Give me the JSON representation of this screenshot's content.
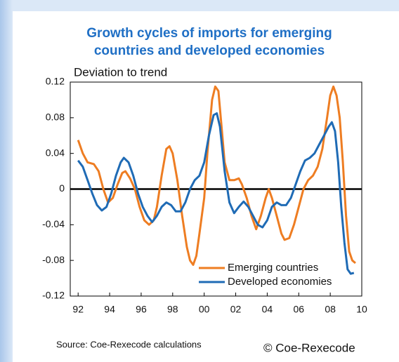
{
  "chart_data": {
    "type": "line",
    "title": "Growth cycles of imports for emerging countries and developed economies",
    "title_lines": [
      "Growth cycles of imports for emerging",
      "countries and developed economies"
    ],
    "y_label": "Deviation to trend",
    "source": "Source: Coe-Rexecode calculations",
    "credit": "© Coe-Rexecode",
    "xlim": [
      1991.5,
      2010
    ],
    "xticks": [
      {
        "value": 1992,
        "label": "92"
      },
      {
        "value": 1994,
        "label": "94"
      },
      {
        "value": 1996,
        "label": "96"
      },
      {
        "value": 1998,
        "label": "98"
      },
      {
        "value": 2000,
        "label": "00"
      },
      {
        "value": 2002,
        "label": "02"
      },
      {
        "value": 2004,
        "label": "04"
      },
      {
        "value": 2006,
        "label": "06"
      },
      {
        "value": 2008,
        "label": "08"
      },
      {
        "value": 2010,
        "label": "10"
      }
    ],
    "ylim": [
      -0.12,
      0.12
    ],
    "yticks": [
      0.12,
      0.08,
      0.04,
      0,
      -0.04,
      -0.08,
      -0.12
    ],
    "grid": false,
    "legend": "lower right",
    "series": [
      {
        "name": "Emerging countries",
        "color": "#ee7d22",
        "x": [
          1992.0,
          1992.3,
          1992.6,
          1993.0,
          1993.3,
          1993.6,
          1993.9,
          1994.2,
          1994.5,
          1994.8,
          1995.0,
          1995.3,
          1995.6,
          1995.9,
          1996.2,
          1996.5,
          1996.8,
          1997.0,
          1997.3,
          1997.6,
          1997.8,
          1998.0,
          1998.3,
          1998.6,
          1998.9,
          1999.1,
          1999.3,
          1999.5,
          1999.7,
          2000.0,
          2000.2,
          2000.5,
          2000.7,
          2000.9,
          2001.1,
          2001.3,
          2001.6,
          2001.9,
          2002.2,
          2002.4,
          2002.7,
          2003.0,
          2003.3,
          2003.6,
          2003.9,
          2004.1,
          2004.3,
          2004.6,
          2004.9,
          2005.1,
          2005.4,
          2005.7,
          2006.0,
          2006.3,
          2006.6,
          2006.9,
          2007.2,
          2007.5,
          2007.8,
          2008.0,
          2008.2,
          2008.4,
          2008.6,
          2008.8,
          2009.0,
          2009.2,
          2009.4,
          2009.6
        ],
        "values": [
          0.055,
          0.04,
          0.03,
          0.028,
          0.02,
          0.0,
          -0.015,
          -0.01,
          0.005,
          0.018,
          0.02,
          0.012,
          0.0,
          -0.02,
          -0.035,
          -0.04,
          -0.035,
          -0.02,
          0.015,
          0.045,
          0.048,
          0.04,
          0.01,
          -0.03,
          -0.065,
          -0.08,
          -0.085,
          -0.075,
          -0.05,
          -0.01,
          0.04,
          0.1,
          0.115,
          0.11,
          0.07,
          0.03,
          0.01,
          0.01,
          0.012,
          0.005,
          -0.01,
          -0.03,
          -0.045,
          -0.03,
          -0.01,
          0.0,
          -0.01,
          -0.03,
          -0.05,
          -0.057,
          -0.055,
          -0.04,
          -0.02,
          0.0,
          0.01,
          0.015,
          0.025,
          0.045,
          0.08,
          0.105,
          0.115,
          0.105,
          0.08,
          0.03,
          -0.03,
          -0.07,
          -0.08,
          -0.083
        ]
      },
      {
        "name": "Developed economies",
        "color": "#1f6bb5",
        "x": [
          1992.0,
          1992.3,
          1992.6,
          1992.9,
          1993.2,
          1993.5,
          1993.8,
          1994.1,
          1994.4,
          1994.7,
          1994.9,
          1995.2,
          1995.5,
          1995.8,
          1996.1,
          1996.4,
          1996.7,
          1997.0,
          1997.3,
          1997.6,
          1997.9,
          1998.2,
          1998.5,
          1998.8,
          1999.1,
          1999.4,
          1999.7,
          2000.0,
          2000.3,
          2000.6,
          2000.8,
          2001.0,
          2001.3,
          2001.6,
          2001.9,
          2002.2,
          2002.5,
          2002.8,
          2003.1,
          2003.4,
          2003.7,
          2004.0,
          2004.3,
          2004.6,
          2004.9,
          2005.2,
          2005.5,
          2005.8,
          2006.1,
          2006.4,
          2006.7,
          2007.0,
          2007.3,
          2007.6,
          2007.9,
          2008.1,
          2008.3,
          2008.5,
          2008.7,
          2008.9,
          2009.1,
          2009.3,
          2009.5
        ],
        "values": [
          0.032,
          0.025,
          0.01,
          -0.005,
          -0.018,
          -0.024,
          -0.02,
          -0.005,
          0.015,
          0.03,
          0.035,
          0.03,
          0.015,
          -0.005,
          -0.02,
          -0.03,
          -0.037,
          -0.03,
          -0.02,
          -0.015,
          -0.018,
          -0.025,
          -0.025,
          -0.015,
          0.0,
          0.01,
          0.015,
          0.03,
          0.06,
          0.083,
          0.085,
          0.07,
          0.02,
          -0.015,
          -0.027,
          -0.02,
          -0.014,
          -0.02,
          -0.03,
          -0.04,
          -0.043,
          -0.035,
          -0.02,
          -0.015,
          -0.018,
          -0.018,
          -0.01,
          0.005,
          0.02,
          0.032,
          0.035,
          0.04,
          0.05,
          0.06,
          0.07,
          0.075,
          0.065,
          0.03,
          -0.02,
          -0.06,
          -0.09,
          -0.095,
          -0.094
        ]
      }
    ]
  }
}
